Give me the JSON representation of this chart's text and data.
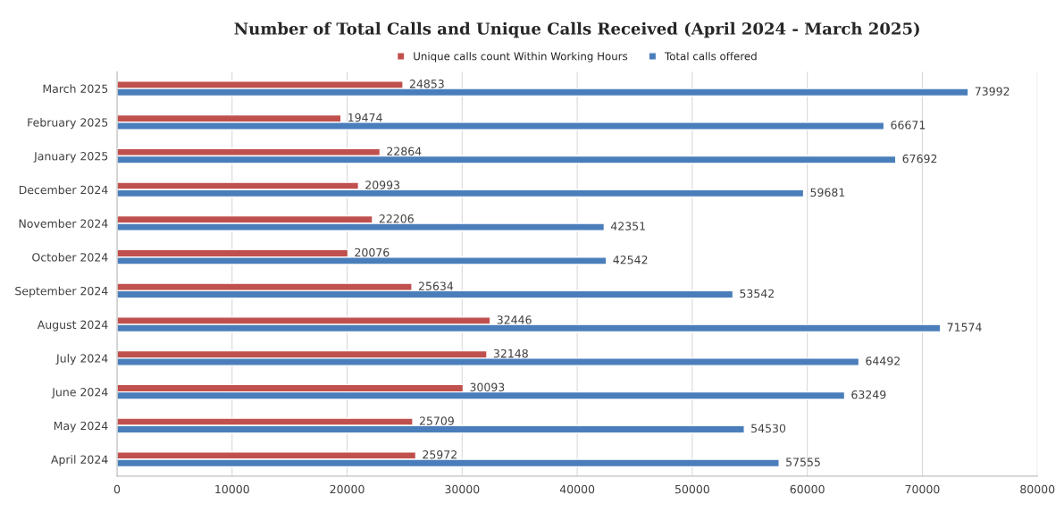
{
  "chart_data": {
    "type": "bar",
    "orientation": "horizontal",
    "title": "Number of Total Calls and Unique Calls Received (April 2024 - March 2025)",
    "categories": [
      "March 2025",
      "February 2025",
      "January 2025",
      "December 2024",
      "November 2024",
      "October 2024",
      "September 2024",
      "August 2024",
      "July 2024",
      "June 2024",
      "May 2024",
      "April 2024"
    ],
    "series": [
      {
        "name": "Unique calls count Within Working Hours",
        "color": "#c0504d",
        "values": [
          24853,
          19474,
          22864,
          20993,
          22206,
          20076,
          25634,
          32446,
          32148,
          30093,
          25709,
          25972
        ]
      },
      {
        "name": "Total calls offered",
        "color": "#4a7ebb",
        "values": [
          73992,
          66671,
          67692,
          59681,
          42351,
          42542,
          53542,
          71574,
          64492,
          63249,
          54530,
          57555
        ]
      }
    ],
    "xlim": [
      0,
      80000
    ],
    "xticks": [
      0,
      10000,
      20000,
      30000,
      40000,
      50000,
      60000,
      70000,
      80000
    ],
    "grid": "x",
    "legend": "top",
    "data_labels": true
  }
}
